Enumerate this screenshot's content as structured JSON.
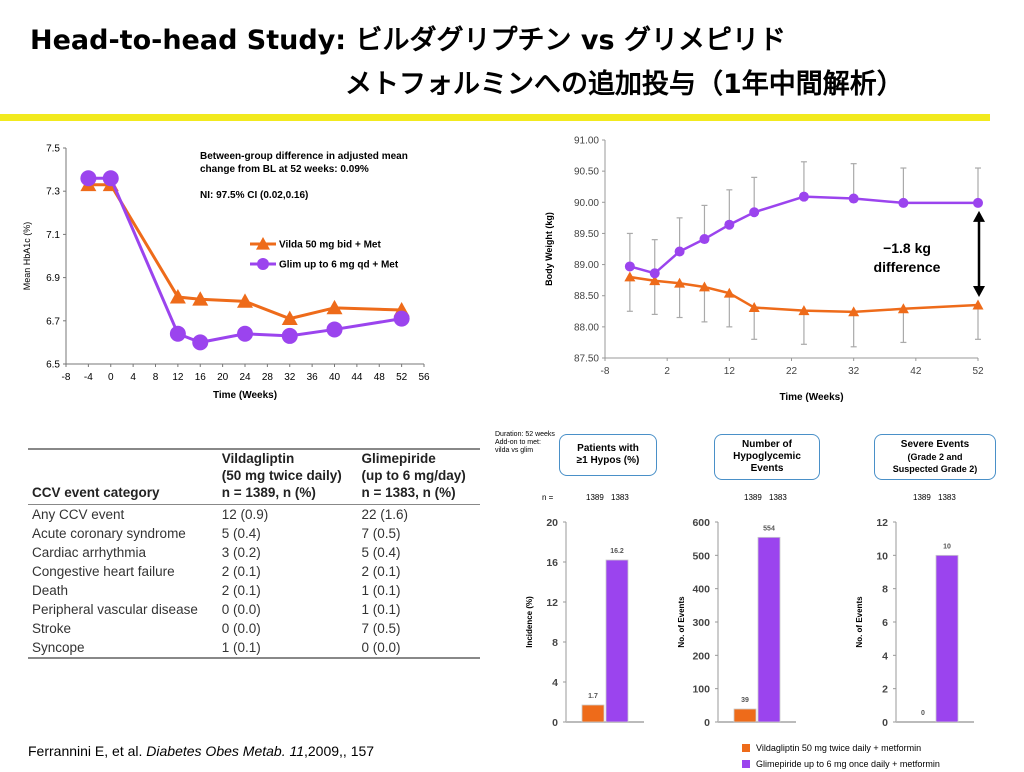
{
  "title": {
    "line1": "Head-to-head Study: ビルダグリプチン vs グリメピリド",
    "line2": "メトフォルミンへの追加投与（1年中間解析）"
  },
  "colors": {
    "vilda": "#ee6b1a",
    "glim": "#9b44ee",
    "rule": "#f2ea1e",
    "box_border": "#4a90c8"
  },
  "chart_data": [
    {
      "type": "line",
      "ylabel": "Mean HbA1c (%)",
      "xlabel": "Time (Weeks)",
      "x_ticks": [
        -8,
        -4,
        0,
        4,
        8,
        12,
        16,
        20,
        24,
        28,
        32,
        36,
        40,
        44,
        48,
        52,
        56
      ],
      "y_ticks": [
        6.5,
        6.7,
        6.9,
        7.1,
        7.3,
        7.5
      ],
      "xlim": [
        -8,
        56
      ],
      "ylim": [
        6.5,
        7.5
      ],
      "grid": false,
      "annotation": [
        "Between-group difference in adjusted mean",
        "change from BL at 52 weeks: 0.09%",
        "",
        "NI: 97.5% CI (0.02,0.16)"
      ],
      "series": [
        {
          "name": "Vilda 50 mg bid + Met",
          "color": "#ee6b1a",
          "marker": "triangle",
          "x": [
            -4,
            0,
            12,
            16,
            24,
            32,
            40,
            52
          ],
          "y": [
            7.33,
            7.33,
            6.81,
            6.8,
            6.79,
            6.71,
            6.76,
            6.75
          ]
        },
        {
          "name": "Glim up to 6 mg qd + Met",
          "color": "#9b44ee",
          "marker": "circle",
          "x": [
            -4,
            0,
            12,
            16,
            24,
            32,
            40,
            52
          ],
          "y": [
            7.36,
            7.36,
            6.64,
            6.6,
            6.64,
            6.63,
            6.66,
            6.71
          ]
        }
      ]
    },
    {
      "type": "line",
      "ylabel": "Body Weight (kg)",
      "xlabel": "Time (Weeks)",
      "x_ticks": [
        -8,
        2,
        12,
        22,
        32,
        42,
        52
      ],
      "y_ticks": [
        "87.50",
        "88.00",
        "88.50",
        "89.00",
        "89.50",
        "90.00",
        "90.50",
        "91.00"
      ],
      "xlim": [
        -8,
        52
      ],
      "ylim": [
        87.5,
        91.0
      ],
      "grid": false,
      "annotation": [
        "−1.8 kg",
        "difference"
      ],
      "series": [
        {
          "color": "#ee6b1a",
          "marker": "triangle",
          "x": [
            -4,
            0,
            4,
            8,
            12,
            16,
            24,
            32,
            40,
            52
          ],
          "y": [
            88.8,
            88.74,
            88.7,
            88.64,
            88.54,
            88.31,
            88.26,
            88.24,
            88.29,
            88.35
          ],
          "err_low": [
            88.25,
            88.2,
            88.15,
            88.08,
            88.0,
            87.8,
            87.72,
            87.68,
            87.75,
            87.8
          ]
        },
        {
          "color": "#9b44ee",
          "marker": "circle",
          "x": [
            -4,
            0,
            4,
            8,
            12,
            16,
            24,
            32,
            40,
            52
          ],
          "y": [
            88.97,
            88.86,
            89.21,
            89.41,
            89.64,
            89.84,
            90.09,
            90.06,
            89.99,
            89.99
          ],
          "err_high": [
            89.5,
            89.4,
            89.75,
            89.95,
            90.2,
            90.4,
            90.65,
            90.62,
            90.55,
            90.55
          ]
        }
      ]
    },
    {
      "type": "bar",
      "title": [
        "Patients with",
        "≥1 Hypos (%)"
      ],
      "ylabel": "Incidence (%)",
      "categories": [
        "1389",
        "1383"
      ],
      "n_label": "n =",
      "y_ticks": [
        0,
        4,
        8,
        12,
        16,
        20
      ],
      "ylim": [
        0,
        20
      ],
      "values": [
        1.7,
        16.2
      ],
      "value_labels": [
        "1.7",
        "16.2"
      ]
    },
    {
      "type": "bar",
      "title": [
        "Number of",
        "Hypoglycemic",
        "Events"
      ],
      "ylabel": "No. of Events",
      "categories": [
        "1389",
        "1383"
      ],
      "y_ticks": [
        0,
        100,
        200,
        300,
        400,
        500,
        600
      ],
      "ylim": [
        0,
        600
      ],
      "values": [
        39,
        554
      ],
      "value_labels": [
        "39",
        "554"
      ]
    },
    {
      "type": "bar",
      "title": [
        "Severe Events",
        "(Grade 2 and",
        "Suspected Grade 2)"
      ],
      "ylabel": "No. of Events",
      "categories": [
        "1389",
        "1383"
      ],
      "y_ticks": [
        0,
        2,
        4,
        6,
        8,
        10,
        12
      ],
      "ylim": [
        0,
        12
      ],
      "values": [
        0,
        10
      ],
      "value_labels": [
        "0",
        "10"
      ]
    }
  ],
  "duration_note": [
    "Duration: 52 weeks",
    "Add-on to met:",
    "vilda vs glim"
  ],
  "bar_legend": [
    {
      "label": "Vildagliptin 50 mg twice daily + metformin",
      "color": "#ee6b1a"
    },
    {
      "label": "Glimepiride up to 6 mg once daily + metformin",
      "color": "#9b44ee"
    }
  ],
  "table": {
    "header": {
      "category": "CCV event category",
      "vilda": [
        "Vildagliptin",
        "(50 mg twice daily)",
        "n = 1389, n (%)"
      ],
      "glim": [
        "Glimepiride",
        "(up to 6 mg/day)",
        "n = 1383, n (%)"
      ]
    },
    "rows": [
      {
        "label": "Any CCV event",
        "vilda": "12 (0.9)",
        "glim": "22 (1.6)"
      },
      {
        "label": "Acute coronary syndrome",
        "vilda": "5 (0.4)",
        "glim": "7 (0.5)"
      },
      {
        "label": "Cardiac arrhythmia",
        "vilda": "3 (0.2)",
        "glim": "5 (0.4)"
      },
      {
        "label": "Congestive heart failure",
        "vilda": "2 (0.1)",
        "glim": "2 (0.1)"
      },
      {
        "label": "Death",
        "vilda": "2 (0.1)",
        "glim": "1 (0.1)"
      },
      {
        "label": "Peripheral vascular disease",
        "vilda": "0 (0.0)",
        "glim": "1 (0.1)"
      },
      {
        "label": "Stroke",
        "vilda": "0 (0.0)",
        "glim": "7 (0.5)"
      },
      {
        "label": "Syncope",
        "vilda": "1 (0.1)",
        "glim": "0 (0.0)"
      }
    ]
  },
  "citation": {
    "authors": "Ferrannini E, et al. ",
    "journal": "Diabetes Obes Metab. 11",
    "rest": ",2009,, 157"
  }
}
